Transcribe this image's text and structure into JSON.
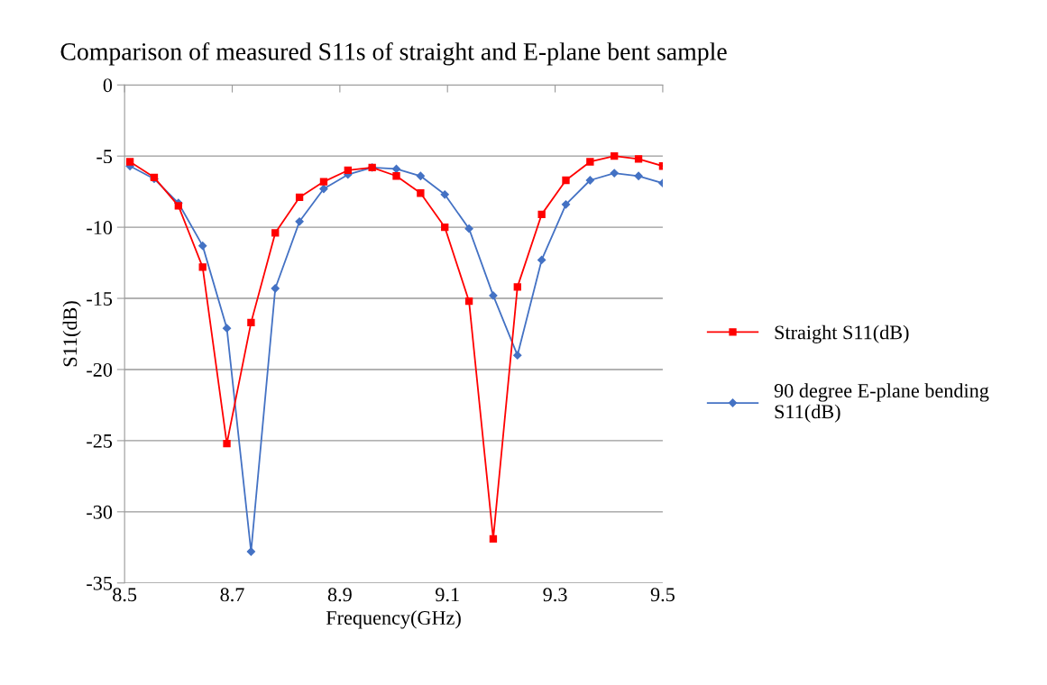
{
  "chart_data": {
    "type": "line",
    "title": "Comparison of measured S11s of straight and E-plane bent sample",
    "xlabel": "Frequency(GHz)",
    "ylabel": "S11(dB)",
    "x": [
      8.51,
      8.555,
      8.6,
      8.645,
      8.69,
      8.735,
      8.78,
      8.825,
      8.87,
      8.915,
      8.96,
      9.005,
      9.05,
      9.095,
      9.14,
      9.185,
      9.23,
      9.275,
      9.32,
      9.365,
      9.41,
      9.455,
      9.5
    ],
    "series": [
      {
        "name": "Straight S11(dB)",
        "color": "#ff0000",
        "marker": "square",
        "values": [
          -5.4,
          -6.5,
          -8.5,
          -12.8,
          -25.2,
          -16.7,
          -10.4,
          -7.9,
          -6.8,
          -6.0,
          -5.8,
          -6.4,
          -7.6,
          -10.0,
          -15.2,
          -31.9,
          -14.2,
          -9.1,
          -6.7,
          -5.4,
          -5.0,
          -5.2,
          -5.7
        ]
      },
      {
        "name": "90 degree E-plane bending S11(dB)",
        "color": "#4472c4",
        "marker": "diamond",
        "values": [
          -5.7,
          -6.6,
          -8.3,
          -11.3,
          -17.1,
          -32.8,
          -14.3,
          -9.6,
          -7.3,
          -6.3,
          -5.8,
          -5.9,
          -6.4,
          -7.7,
          -10.1,
          -14.8,
          -19.0,
          -12.3,
          -8.4,
          -6.7,
          -6.2,
          -6.4,
          -6.9
        ]
      }
    ],
    "xlim": [
      8.5,
      9.5
    ],
    "xticks": [
      8.5,
      8.7,
      8.9,
      9.1,
      9.3,
      9.5
    ],
    "ylim": [
      -35,
      0
    ],
    "yticks": [
      -35,
      -30,
      -25,
      -20,
      -15,
      -10,
      -5,
      0
    ],
    "grid": "y",
    "legend": "right",
    "line_style": "solid"
  }
}
